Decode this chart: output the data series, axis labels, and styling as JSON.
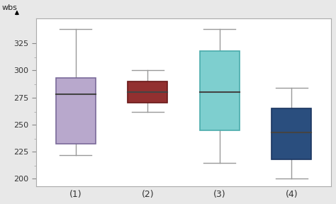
{
  "boxes": [
    {
      "label": "(1)",
      "whisker_low": 222,
      "q1": 232,
      "median": 278,
      "q3": 293,
      "whisker_high": 338,
      "color": "#b8a8cc",
      "edge_color": "#7a6a9a"
    },
    {
      "label": "(2)",
      "whisker_low": 262,
      "q1": 270,
      "median": 280,
      "q3": 290,
      "whisker_high": 300,
      "color": "#923030",
      "edge_color": "#6a1818"
    },
    {
      "label": "(3)",
      "whisker_low": 215,
      "q1": 245,
      "median": 280,
      "q3": 318,
      "whisker_high": 338,
      "color": "#7ecfcf",
      "edge_color": "#4aabab"
    },
    {
      "label": "(4)",
      "whisker_low": 200,
      "q1": 218,
      "median": 243,
      "q3": 265,
      "whisker_high": 284,
      "color": "#2a4e7e",
      "edge_color": "#1a3560"
    }
  ],
  "ylabel": "wbs",
  "ylim": [
    193,
    348
  ],
  "yticks": [
    200,
    225,
    250,
    275,
    300,
    325
  ],
  "ytick_minor": [
    212,
    237,
    262,
    287,
    312
  ],
  "background_color": "#ffffff",
  "fig_background": "#e8e8e8",
  "box_width": 0.55,
  "positions": [
    1,
    2,
    3,
    4
  ],
  "whisker_color": "#999999",
  "median_line_color": "#444444",
  "border_color": "#aaaaaa"
}
